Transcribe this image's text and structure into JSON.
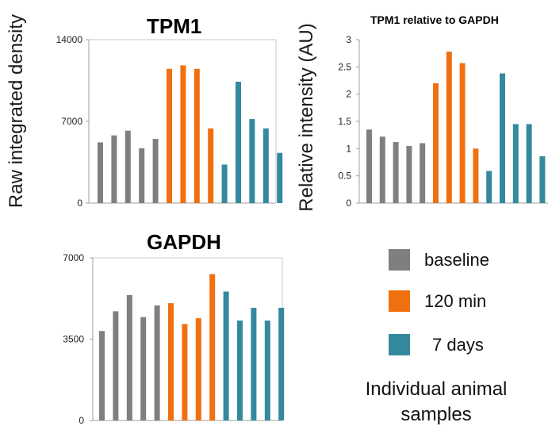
{
  "colors": {
    "baseline": "#7f7f7f",
    "120min": "#f07010",
    "7days": "#35899e",
    "axis": "#a0a0a0"
  },
  "legend": [
    {
      "label": "baseline",
      "color": "#7f7f7f"
    },
    {
      "label": "120 min",
      "color": "#f07010"
    },
    {
      "label": "7 days",
      "color": "#35899e"
    }
  ],
  "caption": {
    "line1": "Individual animal",
    "line2": "samples"
  },
  "left_ylabel": "Raw integrated density",
  "right_ylabel": "Relative intensity (AU)",
  "chart_data": [
    {
      "type": "bar",
      "title": "TPM1",
      "ylim": [
        0,
        14000
      ],
      "yticks": [
        0,
        7000,
        14000
      ],
      "series": [
        {
          "name": "baseline",
          "values": [
            5200,
            5800,
            6200,
            4700,
            5500
          ]
        },
        {
          "name": "120 min",
          "values": [
            11500,
            11800,
            11500,
            6400
          ]
        },
        {
          "name": "7 days",
          "values": [
            3300,
            10400,
            7200,
            6400,
            4300
          ]
        }
      ]
    },
    {
      "type": "bar",
      "title": "TPM1 relative to GAPDH",
      "ylim": [
        0,
        3
      ],
      "yticks": [
        0,
        0.5,
        1,
        1.5,
        2,
        2.5,
        3
      ],
      "series": [
        {
          "name": "baseline",
          "values": [
            1.35,
            1.22,
            1.12,
            1.05,
            1.1
          ]
        },
        {
          "name": "120 min",
          "values": [
            2.2,
            2.78,
            2.57,
            1.0
          ]
        },
        {
          "name": "7 days",
          "values": [
            0.59,
            2.38,
            1.45,
            1.45,
            0.86
          ]
        }
      ]
    },
    {
      "type": "bar",
      "title": "GAPDH",
      "ylim": [
        0,
        7000
      ],
      "yticks": [
        0,
        3500,
        7000
      ],
      "series": [
        {
          "name": "baseline",
          "values": [
            3850,
            4700,
            5400,
            4450,
            4950
          ]
        },
        {
          "name": "120 min",
          "values": [
            5050,
            4150,
            4400,
            6300
          ]
        },
        {
          "name": "7 days",
          "values": [
            5550,
            4300,
            4850,
            4300,
            4850
          ]
        }
      ]
    }
  ]
}
